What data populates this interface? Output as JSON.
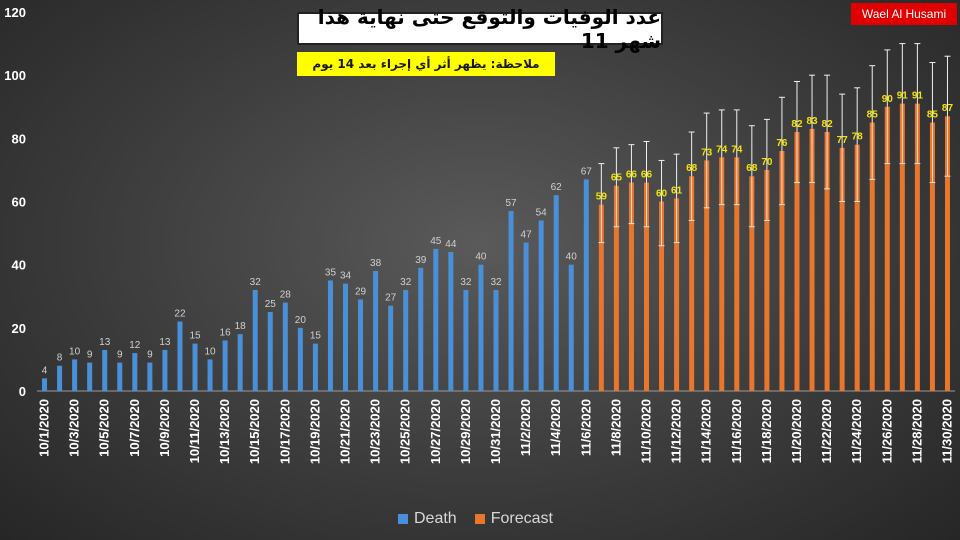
{
  "title": "عدد الوفيات والتوقع حتى نهاية هذا شهر 11",
  "note": "ملاحظة: يظهر أثر أي إجراء بعد 14 يوم",
  "author": "Wael Al Husami",
  "colors": {
    "death": "#4a90d9",
    "forecast": "#e8762d",
    "axis_text": "#ffffff",
    "label_death": "#d0d0d0",
    "label_forecast": "#f4e400"
  },
  "chart_data": {
    "type": "bar",
    "ylim": [
      0,
      120
    ],
    "yticks": [
      0,
      20,
      40,
      60,
      80,
      100,
      120
    ],
    "xticks": [
      "10/1/2020",
      "10/3/2020",
      "10/5/2020",
      "10/7/2020",
      "10/9/2020",
      "10/11/2020",
      "10/13/2020",
      "10/15/2020",
      "10/17/2020",
      "10/19/2020",
      "10/21/2020",
      "10/23/2020",
      "10/25/2020",
      "10/27/2020",
      "10/29/2020",
      "10/31/2020",
      "11/2/2020",
      "11/4/2020",
      "11/6/2020",
      "11/8/2020",
      "11/10/2020",
      "11/12/2020",
      "11/14/2020",
      "11/16/2020",
      "11/18/2020",
      "11/20/2020",
      "11/22/2020",
      "11/24/2020",
      "11/26/2020",
      "11/28/2020",
      "11/30/2020"
    ],
    "legend": [
      "Death",
      "Forecast"
    ],
    "series": [
      {
        "name": "Death",
        "start_index": 0,
        "values": [
          4,
          8,
          10,
          9,
          13,
          9,
          12,
          9,
          13,
          22,
          15,
          10,
          16,
          18,
          32,
          25,
          28,
          20,
          15,
          35,
          34,
          29,
          38,
          27,
          32,
          39,
          45,
          44,
          32,
          40,
          32,
          57,
          47,
          54,
          62,
          40,
          67
        ]
      },
      {
        "name": "Forecast",
        "start_index": 37,
        "values": [
          59,
          65,
          66,
          66,
          60,
          61,
          68,
          73,
          74,
          74,
          68,
          70,
          76,
          82,
          83,
          82,
          77,
          78,
          85,
          90,
          91,
          91,
          85,
          87
        ],
        "error_upper": [
          72,
          77,
          78,
          79,
          73,
          75,
          82,
          88,
          89,
          89,
          84,
          86,
          93,
          98,
          100,
          100,
          94,
          96,
          103,
          108,
          110,
          110,
          104,
          106
        ],
        "error_lower": [
          47,
          52,
          53,
          52,
          46,
          47,
          54,
          58,
          59,
          59,
          52,
          54,
          59,
          66,
          66,
          64,
          60,
          60,
          67,
          72,
          72,
          72,
          66,
          68
        ]
      }
    ]
  }
}
